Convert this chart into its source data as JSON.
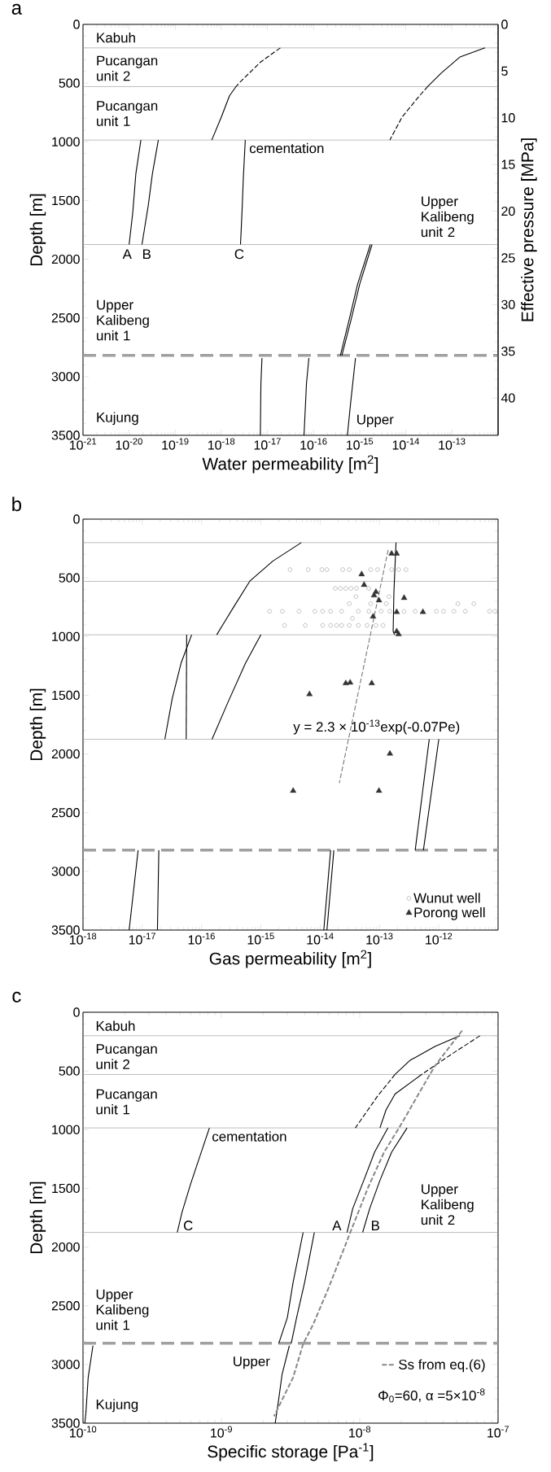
{
  "chart_data": [
    {
      "type": "line",
      "title": "a",
      "xlabel": "Water permeability [m$^{2}$]",
      "ylabel": "Depth [m]",
      "y2label": "Effective pressure [MPa]",
      "log": "x",
      "xlim": [
        1e-21,
        1e-12
      ],
      "ylim": [
        3500,
        0
      ],
      "y2lim": [
        44,
        0
      ],
      "xticks": [
        {
          "value": 1e-21,
          "label": "10$^{-21}$"
        },
        {
          "value": 1e-20,
          "label": "10$^{-20}$"
        },
        {
          "value": 1e-19,
          "label": "10$^{-19}$"
        },
        {
          "value": 1e-18,
          "label": "10$^{-18}$"
        },
        {
          "value": 1e-17,
          "label": "10$^{-17}$"
        },
        {
          "value": 1e-16,
          "label": "10$^{-16}$"
        },
        {
          "value": 1e-15,
          "label": "10$^{-15}$"
        },
        {
          "value": 1e-14,
          "label": "10$^{-14}$"
        },
        {
          "value": 1e-13,
          "label": "10$^{-13}$"
        }
      ],
      "yticks": [
        0,
        500,
        1000,
        1500,
        2000,
        2500,
        3000,
        3500
      ],
      "y2ticks": [
        0,
        5,
        10,
        15,
        20,
        25,
        30,
        35,
        40
      ],
      "series": [
        {
          "type": "line",
          "color": "#000000",
          "line_style": "dashed",
          "x": [
            1.9e-17,
            7e-18,
            2.6e-18,
            2.1e-18
          ],
          "values": [
            200,
            322,
            488,
            527
          ]
        },
        {
          "type": "line",
          "color": "#000000",
          "line_style": "solid",
          "x": [
            2.1e-18,
            1.5e-18,
            1e-18,
            6.2e-19
          ],
          "values": [
            527,
            608,
            789,
            985
          ]
        },
        {
          "type": "line",
          "color": "#000000",
          "line_style": "solid",
          "x": [
            5.2e-13,
            1.5e-13,
            5.9e-14,
            3e-14
          ],
          "values": [
            200,
            277,
            413,
            527
          ]
        },
        {
          "type": "line",
          "color": "#000000",
          "line_style": "dashed",
          "x": [
            3e-14,
            1.7e-14,
            8.3e-15,
            4.5e-15
          ],
          "values": [
            527,
            639,
            789,
            985
          ]
        },
        {
          "type": "line",
          "color": "#000000",
          "line_style": "solid",
          "x": [
            1.8e-20,
            1.4e-20,
            1.2e-20,
            1e-20
          ],
          "values": [
            985,
            1271,
            1602,
            1875
          ]
        },
        {
          "type": "line",
          "color": "#000000",
          "line_style": "solid",
          "x": [
            4.3e-20,
            3.2e-20,
            2.6e-20,
            1.9e-20
          ],
          "values": [
            985,
            1271,
            1542,
            1875
          ]
        },
        {
          "type": "line",
          "color": "#000000",
          "line_style": "solid",
          "x": [
            3.3e-18,
            3e-18,
            2.8e-18,
            2.6e-18
          ],
          "values": [
            985,
            1301,
            1602,
            1875
          ]
        },
        {
          "type": "line",
          "color": "#000000",
          "line_style": "solid",
          "x": [
            1.7e-15,
            9e-16,
            5.9e-16,
            3.8e-16
          ],
          "values": [
            1875,
            2212,
            2515,
            2820
          ]
        },
        {
          "type": "line",
          "color": "#000000",
          "line_style": "solid",
          "x": [
            1.85e-15,
            1e-15,
            6.5e-16,
            4.1e-16
          ],
          "values": [
            1875,
            2212,
            2515,
            2820
          ]
        },
        {
          "type": "line",
          "color": "#000000",
          "line_style": "solid",
          "x": [
            7.6e-18,
            7.2e-18,
            7e-18
          ],
          "values": [
            2842,
            3060,
            3500
          ]
        },
        {
          "type": "line",
          "color": "#000000",
          "line_style": "solid",
          "x": [
            7.9e-17,
            7e-17,
            6.2e-17
          ],
          "values": [
            2842,
            3060,
            3500
          ]
        },
        {
          "type": "line",
          "color": "#000000",
          "line_style": "solid",
          "x": [
            8.1e-16,
            6.4e-16,
            5.4e-16
          ],
          "values": [
            2842,
            3212,
            3500
          ]
        }
      ],
      "ref_lines": [
        {
          "axis": "y",
          "value": 200,
          "color": "#a0a0a0"
        },
        {
          "axis": "y",
          "value": 530,
          "color": "#a0a0a0"
        },
        {
          "axis": "y",
          "value": 985,
          "color": "#a0a0a0"
        },
        {
          "axis": "y",
          "value": 1875,
          "color": "#a0a0a0"
        },
        {
          "axis": "y",
          "value": 2820,
          "color": "#a0a0a0",
          "line_style": "dashed"
        }
      ],
      "annotations": [
        "Kabuh",
        "Pucangan unit 2",
        "Pucangan unit 1",
        "cementation",
        "Upper Kalibeng unit 2",
        "A",
        "B",
        "C",
        "Upper Kalibeng unit 1",
        "Kujung",
        "Upper"
      ]
    },
    {
      "type": "line",
      "title": "b",
      "xlabel": "Gas permeability [m$^{2}$]",
      "ylabel": "Depth [m]",
      "log": "x",
      "legend": "bottom right",
      "xlim": [
        1e-18,
        1e-11
      ],
      "ylim": [
        3500,
        0
      ],
      "xticks": [
        {
          "value": 1e-18,
          "label": "10$^{-18}$"
        },
        {
          "value": 1e-17,
          "label": "10$^{-17}$"
        },
        {
          "value": 1e-16,
          "label": "10$^{-16}$"
        },
        {
          "value": 1e-15,
          "label": "10$^{-15}$"
        },
        {
          "value": 1e-14,
          "label": "10$^{-14}$"
        },
        {
          "value": 1e-13,
          "label": "10$^{-13}$"
        },
        {
          "value": 1e-12,
          "label": "10$^{-12}$"
        }
      ],
      "yticks": [
        0,
        500,
        1000,
        1500,
        2000,
        2500,
        3000,
        3500
      ],
      "series": [
        {
          "type": "line",
          "color": "#000000",
          "line_style": "solid",
          "x": [
            4.8e-15,
            1.6e-15,
            6.5e-16,
            3.5e-16,
            2.5e-16,
            1.8e-16
          ],
          "values": [
            200,
            356,
            528,
            746,
            866,
            985
          ]
        },
        {
          "type": "line",
          "color": "#000000",
          "line_style": "solid",
          "x": [
            1e-15,
            5.5e-16,
            2.8e-16,
            1.5e-16
          ],
          "values": [
            985,
            1227,
            1557,
            1875
          ]
        },
        {
          "type": "line",
          "color": "#000000",
          "line_style": "solid",
          "x": [
            6.8e-17,
            4.5e-17,
            3.2e-17,
            2.4e-17
          ],
          "values": [
            985,
            1227,
            1527,
            1875
          ]
        },
        {
          "type": "line",
          "color": "#000000",
          "line_style": "solid",
          "x": [
            5.6e-17,
            5.5e-17
          ],
          "values": [
            985,
            1875
          ]
        },
        {
          "type": "line",
          "color": "#000000",
          "line_style": "solid",
          "x": [
            6.9e-13,
            4e-13
          ],
          "values": [
            1875,
            2820
          ]
        },
        {
          "type": "line",
          "color": "#000000",
          "line_style": "solid",
          "x": [
            1e-12,
            5.5e-13
          ],
          "values": [
            1875,
            2820
          ]
        },
        {
          "type": "line",
          "color": "#000000",
          "line_style": "solid",
          "x": [
            8.5e-18,
            6e-18
          ],
          "values": [
            2820,
            3500
          ]
        },
        {
          "type": "line",
          "color": "#000000",
          "line_style": "solid",
          "x": [
            1.9e-17,
            1.8e-17
          ],
          "values": [
            2820,
            3500
          ]
        },
        {
          "type": "line",
          "color": "#000000",
          "line_style": "solid",
          "x": [
            1.5e-14,
            1.15e-14
          ],
          "values": [
            2820,
            3500
          ]
        },
        {
          "type": "line",
          "color": "#000000",
          "line_style": "solid",
          "x": [
            1.7e-14,
            1.3e-14
          ],
          "values": [
            2820,
            3500
          ]
        },
        {
          "type": "line",
          "color": "#000000",
          "line_style": "solid",
          "x": [
            1.9e-13,
            1.75e-13,
            1.7e-13,
            1.8e-13
          ],
          "values": [
            200,
            626,
            956,
            985
          ]
        },
        {
          "type": "line",
          "color": "#777777",
          "line_style": "dashed",
          "x": [
            1.4e-13,
            2.1e-14
          ],
          "values": [
            262,
            2248
          ]
        },
        {
          "type": "scatter",
          "name": "Wunut well",
          "color": "#999999",
          "marker": "circle",
          "x": [
            3.1e-15,
            6.3e-15,
            1.07e-14,
            1.3e-14,
            2.4e-14,
            3.1e-14,
            7.1e-14,
            9.3e-14,
            1.6e-13,
            2.1e-13,
            2.8e-13,
            1.8e-14,
            2.2e-14,
            2.7e-14,
            3.3e-14,
            4.1e-14,
            6.6e-14,
            4e-14,
            1.45e-13,
            3.1e-14,
            7.1e-14,
            1.3e-13,
            2.1e-12,
            3.9e-12,
            1.4e-15,
            2.3e-15,
            4.4e-15,
            8.1e-15,
            1.1e-14,
            1.5e-14,
            2.3e-14,
            4.4e-14,
            6.6e-14,
            1.07e-13,
            1.5e-13,
            2.6e-13,
            4e-13,
            9.1e-13,
            1.2e-12,
            1.8e-12,
            2.8e-12,
            7.2e-12,
            8.9e-12,
            3.5e-14,
            2.5e-15,
            5.6e-15,
            1.1e-14,
            1.5e-14,
            1.9e-14,
            2.3e-14,
            3.1e-14,
            4.4e-14,
            6.2e-14,
            8.7e-14,
            1.15e-13
          ],
          "values": [
            430,
            430,
            430,
            430,
            430,
            430,
            430,
            430,
            430,
            430,
            430,
            590,
            590,
            590,
            590,
            590,
            590,
            660,
            660,
            720,
            720,
            720,
            720,
            720,
            785,
            785,
            785,
            785,
            785,
            785,
            785,
            785,
            785,
            785,
            785,
            785,
            785,
            785,
            785,
            785,
            785,
            785,
            785,
            845,
            905,
            905,
            905,
            905,
            905,
            905,
            905,
            905,
            905,
            905,
            905
          ]
        },
        {
          "type": "scatter",
          "name": "Porong well",
          "color": "#333333",
          "marker": "triangle",
          "x": [
            1.6e-13,
            1.95e-13,
            5e-14,
            5.5e-14,
            8.7e-14,
            8.1e-14,
            9.8e-14,
            2.6e-13,
            1.95e-13,
            5.4e-13,
            7.8e-14,
            1.95e-13,
            2.1e-13,
            2.7e-14,
            3.2e-14,
            7.4e-14,
            6.6e-15,
            1.5e-13,
            3.5e-15,
            9.8e-14
          ],
          "values": [
            294,
            294,
            470,
            560,
            620,
            650,
            692,
            671,
            791,
            791,
            830,
            956,
            980,
            1398,
            1392,
            1398,
            1491,
            1998,
            2314,
            2314
          ]
        }
      ],
      "ref_lines": [
        {
          "axis": "y",
          "value": 200,
          "color": "#a0a0a0"
        },
        {
          "axis": "y",
          "value": 530,
          "color": "#a0a0a0"
        },
        {
          "axis": "y",
          "value": 985,
          "color": "#a0a0a0"
        },
        {
          "axis": "y",
          "value": 1875,
          "color": "#a0a0a0"
        },
        {
          "axis": "y",
          "value": 2820,
          "color": "#a0a0a0",
          "line_style": "dashed"
        }
      ],
      "annotations": [
        "y = 2.3 × 10$^{-13}$exp(-0.07Pe)"
      ]
    },
    {
      "type": "line",
      "title": "c",
      "xlabel": "Specific storage [Pa$^{-1}$]",
      "ylabel": "Depth [m]",
      "log": "x",
      "legend": "bottom right",
      "xlim": [
        1e-10,
        1e-07
      ],
      "ylim": [
        3500,
        0
      ],
      "xticks": [
        {
          "value": 1e-10,
          "label": "10$^{-10}$"
        },
        {
          "value": 1e-09,
          "label": "10$^{-9}$"
        },
        {
          "value": 1e-08,
          "label": "10$^{-8}$"
        },
        {
          "value": 1e-07,
          "label": "10$^{-7}$"
        }
      ],
      "yticks": [
        0,
        500,
        1000,
        1500,
        2000,
        2500,
        3000,
        3500
      ],
      "series": [
        {
          "type": "line",
          "color": "#000000",
          "line_style": "solid",
          "x": [
            5.3e-08,
            3.5e-08,
            2.3e-08,
            1.8e-08
          ],
          "values": [
            200,
            291,
            411,
            530
          ]
        },
        {
          "type": "line",
          "color": "#000000",
          "line_style": "dashed",
          "x": [
            1.8e-08,
            1.35e-08,
            1.1e-08,
            9.3e-09
          ],
          "values": [
            530,
            712,
            862,
            985
          ]
        },
        {
          "type": "line",
          "color": "#000000",
          "line_style": "dashed",
          "x": [
            7.4e-08,
            4.7e-08,
            2.8e-08
          ],
          "values": [
            200,
            351,
            530
          ]
        },
        {
          "type": "line",
          "color": "#000000",
          "line_style": "solid",
          "x": [
            2.8e-08,
            1.8e-08,
            1.55e-08,
            1.4e-08
          ],
          "values": [
            530,
            697,
            832,
            985
          ]
        },
        {
          "type": "line",
          "color": "#000000",
          "line_style": "solid",
          "x": [
            8.2e-10,
            7.3e-10,
            6e-10,
            5.2e-10,
            4.8e-10
          ],
          "values": [
            985,
            1162,
            1462,
            1703,
            1875
          ]
        },
        {
          "type": "line",
          "color": "#000000",
          "line_style": "solid",
          "x": [
            1.6e-08,
            1.28e-08,
            1.07e-08,
            8.9e-09,
            8.1e-09
          ],
          "values": [
            985,
            1192,
            1432,
            1673,
            1875
          ]
        },
        {
          "type": "line",
          "color": "#000000",
          "line_style": "solid",
          "x": [
            2.2e-08,
            1.7e-08,
            1.4e-08,
            1.18e-08,
            1.05e-08
          ],
          "values": [
            985,
            1192,
            1432,
            1673,
            1875
          ]
        },
        {
          "type": "line",
          "color": "#000000",
          "line_style": "solid",
          "x": [
            3.9e-09,
            3.3e-09,
            3e-09,
            2.6e-09
          ],
          "values": [
            1875,
            2300,
            2600,
            2820
          ]
        },
        {
          "type": "line",
          "color": "#000000",
          "line_style": "solid",
          "x": [
            4.7e-09,
            4e-09,
            3.5e-09,
            3.2e-09
          ],
          "values": [
            1875,
            2300,
            2600,
            2820
          ]
        },
        {
          "type": "line",
          "color": "#000000",
          "line_style": "solid",
          "x": [
            1.18e-10,
            1.09e-10,
            1.05e-10,
            1.03e-10
          ],
          "values": [
            2840,
            3111,
            3411,
            3500
          ]
        },
        {
          "type": "line",
          "color": "#000000",
          "line_style": "solid",
          "x": [
            3.1e-09,
            2.75e-09,
            2.6e-09,
            2.45e-09
          ],
          "values": [
            2840,
            3081,
            3291,
            3500
          ]
        },
        {
          "type": "line",
          "name": "Ss from eq.(6)",
          "color": "#888888",
          "line_style": "dashed",
          "x": [
            5.5e-08,
            3.5e-08,
            2.8e-08,
            2e-08,
            1.5e-08,
            1.15e-08,
            8.5e-09,
            7.6e-09,
            5.9e-09,
            4.6e-09,
            3.9e-09,
            3.3e-09,
            2.4e-09
          ],
          "values": [
            156,
            456,
            652,
            952,
            1192,
            1492,
            1883,
            2030,
            2360,
            2661,
            2826,
            3111,
            3441
          ]
        }
      ],
      "ref_lines": [
        {
          "axis": "y",
          "value": 200,
          "color": "#a0a0a0"
        },
        {
          "axis": "y",
          "value": 530,
          "color": "#a0a0a0"
        },
        {
          "axis": "y",
          "value": 985,
          "color": "#a0a0a0"
        },
        {
          "axis": "y",
          "value": 1875,
          "color": "#a0a0a0"
        },
        {
          "axis": "y",
          "value": 2820,
          "color": "#a0a0a0",
          "line_style": "dashed"
        }
      ],
      "annotations": [
        "Kabuh",
        "Pucangan unit 2",
        "Pucangan unit 1",
        "cementation",
        "Upper Kalibeng unit 2",
        "C",
        "A",
        "B",
        "Upper Kalibeng unit 1",
        "Upper",
        "Kujung",
        "Φ$_{0}$=60, α =5×10$^{-8}$"
      ]
    }
  ]
}
